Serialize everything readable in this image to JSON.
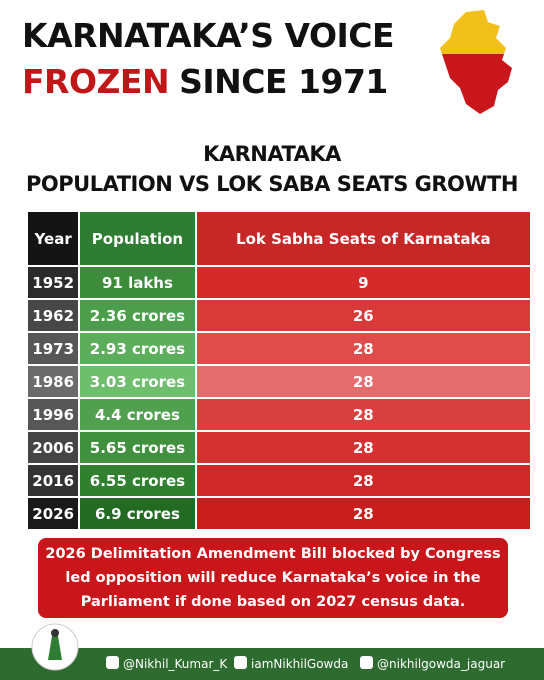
{
  "header": {
    "title_line1": "KARNATAKA’S VOICE",
    "title_highlight": "FROZEN",
    "title_rest": "SINCE 1971",
    "subtitle_line1": "KARNATAKA",
    "subtitle_line2": "POPULATION VS LOK SABA SEATS GROWTH"
  },
  "table": {
    "columns": [
      "Year",
      "Population",
      "Lok Sabha Seats of Karnataka"
    ],
    "rows": [
      [
        "1952",
        "91 lakhs",
        "9"
      ],
      [
        "1962",
        "2.36 crores",
        "26"
      ],
      [
        "1973",
        "2.93 crores",
        "28"
      ],
      [
        "1986",
        "3.03 crores",
        "28"
      ],
      [
        "1996",
        "4.4 crores",
        "28"
      ],
      [
        "2006",
        "5.65 crores",
        "28"
      ],
      [
        "2016",
        "6.55 crores",
        "28"
      ],
      [
        "2026",
        "6.9 crores",
        "28"
      ]
    ]
  },
  "note": {
    "lines": [
      "2026 Delimitation Amendment Bill blocked by Congress",
      "led opposition will reduce Karnataka’s voice in the",
      "Parliament if done based on 2027 census data."
    ]
  },
  "footer": {
    "handles": [
      "@Nikhil_Kumar_K",
      "iamNikhilGowda",
      "@nikhilgowda_jaguar"
    ]
  }
}
